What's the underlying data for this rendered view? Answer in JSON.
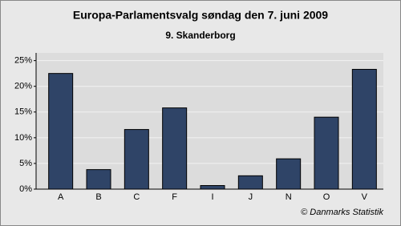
{
  "chart_data": {
    "type": "bar",
    "title": "Europa-Parlamentsvalg søndag  den 7. juni 2009",
    "subtitle": "9. Skanderborg",
    "source": "© Danmarks Statistik",
    "categories": [
      "A",
      "B",
      "C",
      "F",
      "I",
      "J",
      "N",
      "O",
      "V"
    ],
    "values": [
      22.5,
      3.8,
      11.6,
      15.8,
      0.7,
      2.6,
      5.9,
      14.0,
      23.3
    ],
    "color": "#2f4467",
    "ylim": [
      0,
      26.5
    ],
    "yticks": [
      {
        "value": 0,
        "label": "0%"
      },
      {
        "value": 5,
        "label": "5%"
      },
      {
        "value": 10,
        "label": "10%"
      },
      {
        "value": 15,
        "label": "15%"
      },
      {
        "value": 20,
        "label": "20%"
      },
      {
        "value": 25,
        "label": "25%"
      }
    ],
    "grid": true
  }
}
